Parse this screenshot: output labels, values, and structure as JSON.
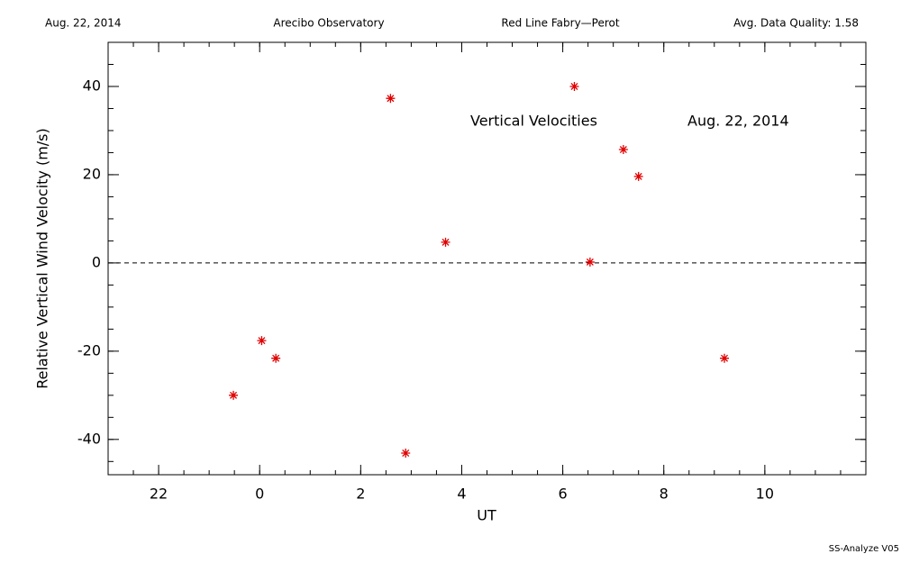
{
  "header": {
    "date": "Aug. 22, 2014",
    "site": "Arecibo Observatory",
    "instrument": "Red Line Fabry—Perot",
    "quality": "Avg. Data Quality: 1.58"
  },
  "footer": "SS-Analyze V05",
  "chart_data": {
    "type": "scatter",
    "annotations": [
      "Vertical Velocities",
      "Aug. 22, 2014"
    ],
    "xlabel": "UT",
    "ylabel": "Relative Vertical Wind Velocity (m/s)",
    "color": "#e00000",
    "x": [
      -0.52,
      0.04,
      0.32,
      2.59,
      2.89,
      3.68,
      6.23,
      6.54,
      7.2,
      7.5,
      9.2
    ],
    "values": [
      -30,
      -17.6,
      -21.6,
      37.3,
      -43.1,
      4.7,
      40,
      0.2,
      25.7,
      19.6,
      -21.6
    ],
    "xlim": [
      -3,
      12
    ],
    "xticks": [
      {
        "value": -2,
        "label": "22"
      },
      0,
      2,
      4,
      6,
      8,
      10
    ],
    "xminor": 0.5,
    "ylim": [
      -48,
      50
    ],
    "yticks": [
      -40,
      -20,
      0,
      20,
      40
    ],
    "yminor": 5,
    "reference_line": 0
  }
}
